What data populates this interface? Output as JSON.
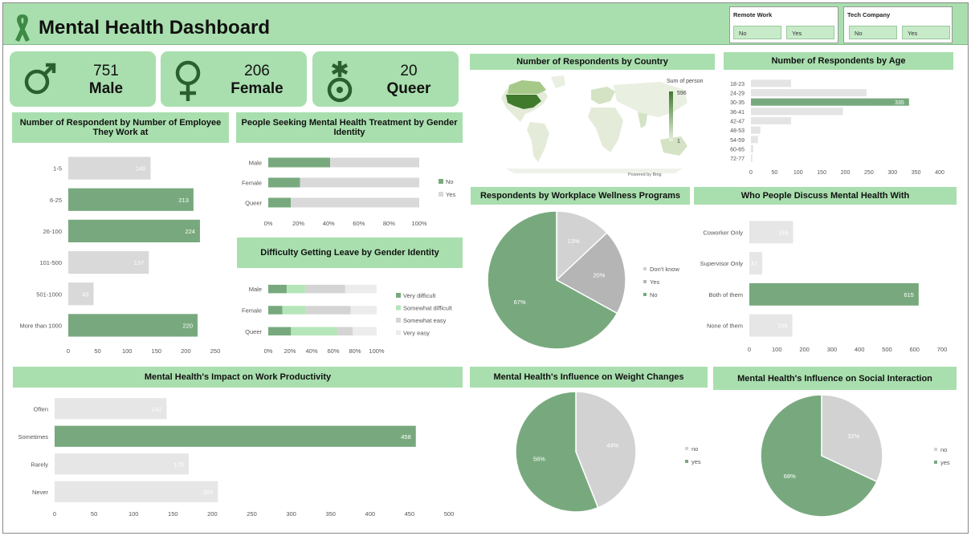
{
  "header": {
    "title": "Mental Health Dashboard"
  },
  "slicers": [
    {
      "title": "Remote Work",
      "options": [
        "No",
        "Yes"
      ]
    },
    {
      "title": "Tech Company",
      "options": [
        "No",
        "Yes"
      ]
    }
  ],
  "cards": [
    {
      "value": "751",
      "label": "Male"
    },
    {
      "value": "206",
      "label": "Female"
    },
    {
      "value": "20",
      "label": "Queer"
    }
  ],
  "colors": {
    "accent": "#78a97e",
    "gray": "#d9d9d9",
    "light": "#ececec",
    "header": "#a9dfae",
    "somewhat_easy": "#d4d4d4",
    "somewhat_difficult": "#b5e6b9"
  },
  "panels": {
    "employees_title": "Number of Respondent by Number of Employee They Work at",
    "treatment_title": "People Seeking Mental Health Treatment by Gender Identity",
    "leave_title": "Difficulty Getting Leave by Gender Identity",
    "country_title": "Number of Respondents by Country",
    "age_title": "Number of Respondents by Age",
    "wellness_title": "Respondents by Workplace Wellness Programs",
    "discuss_title": "Who People Discuss Mental Health With",
    "productivity_title": "Mental Health's Impact on Work Productivity",
    "weight_title": "Mental Health's Influence on Weight Changes",
    "social_title": "Mental Health's Influence on Social Interaction",
    "map_legend_title": "Sum of person",
    "map_legend_max": "596",
    "map_legend_min": "1",
    "map_credit": "Powered by Bing"
  },
  "chart_data": [
    {
      "id": "employees",
      "type": "bar",
      "orientation": "horizontal",
      "categories": [
        "1-5",
        "6-25",
        "26-100",
        "101-500",
        "501-1000",
        "More than 1000"
      ],
      "values": [
        140,
        213,
        224,
        137,
        43,
        220
      ],
      "highlight": [
        false,
        true,
        true,
        false,
        false,
        true
      ],
      "xlim": [
        0,
        250
      ],
      "xticks": [
        0,
        50,
        100,
        150,
        200,
        250
      ]
    },
    {
      "id": "treatment",
      "type": "bar",
      "orientation": "horizontal",
      "stacked": "percent",
      "categories": [
        "Male",
        "Female",
        "Queer"
      ],
      "series": [
        {
          "name": "No",
          "values": [
            41,
            21,
            15
          ]
        },
        {
          "name": "Yes",
          "values": [
            59,
            79,
            85
          ]
        }
      ],
      "xticks": [
        "0%",
        "20%",
        "40%",
        "60%",
        "80%",
        "100%"
      ]
    },
    {
      "id": "leave",
      "type": "bar",
      "orientation": "horizontal",
      "stacked": "percent",
      "categories": [
        "Male",
        "Female",
        "Queer"
      ],
      "series": [
        {
          "name": "Very difficult",
          "values": [
            17,
            13,
            21
          ]
        },
        {
          "name": "Somewhat difficult",
          "values": [
            17,
            22,
            43
          ]
        },
        {
          "name": "Somewhat easy",
          "values": [
            37,
            41,
            14
          ]
        },
        {
          "name": "Very easy",
          "values": [
            29,
            24,
            22
          ]
        }
      ],
      "xticks": [
        "0%",
        "20%",
        "40%",
        "60%",
        "80%",
        "100%"
      ]
    },
    {
      "id": "age",
      "type": "bar",
      "orientation": "horizontal",
      "categories": [
        "18-23",
        "24-29",
        "30-35",
        "36-41",
        "42-47",
        "48-53",
        "54-59",
        "60-65",
        "72-77"
      ],
      "values": [
        85,
        245,
        335,
        195,
        85,
        20,
        15,
        5,
        3
      ],
      "data_labels": [
        null,
        null,
        "335",
        null,
        null,
        null,
        null,
        null,
        null
      ],
      "highlight": [
        false,
        false,
        true,
        false,
        false,
        false,
        false,
        false,
        false
      ],
      "xlim": [
        0,
        400
      ],
      "xticks": [
        0,
        50,
        100,
        150,
        200,
        250,
        300,
        350,
        400
      ]
    },
    {
      "id": "wellness",
      "type": "pie",
      "labels": [
        "Don't know",
        "Yes",
        "No"
      ],
      "values": [
        13,
        20,
        67
      ]
    },
    {
      "id": "discuss",
      "type": "bar",
      "orientation": "horizontal",
      "categories": [
        "Coworker Only",
        "Supervisor Only",
        "Both of them",
        "None of them"
      ],
      "values": [
        159,
        47,
        615,
        156
      ],
      "highlight": [
        false,
        false,
        true,
        false
      ],
      "xlim": [
        0,
        700
      ],
      "xticks": [
        0,
        100,
        200,
        300,
        400,
        500,
        600,
        700
      ]
    },
    {
      "id": "productivity",
      "type": "bar",
      "orientation": "horizontal",
      "categories": [
        "Often",
        "Sometimes",
        "Rarely",
        "Never"
      ],
      "values": [
        142,
        458,
        170,
        207
      ],
      "highlight": [
        false,
        true,
        false,
        false
      ],
      "xlim": [
        0,
        500
      ],
      "xticks": [
        0,
        50,
        100,
        150,
        200,
        250,
        300,
        350,
        400,
        450,
        500
      ]
    },
    {
      "id": "weight",
      "type": "pie",
      "labels": [
        "no",
        "yes"
      ],
      "values": [
        44,
        56
      ]
    },
    {
      "id": "social",
      "type": "pie",
      "labels": [
        "no",
        "yes"
      ],
      "values": [
        32,
        68
      ]
    }
  ]
}
